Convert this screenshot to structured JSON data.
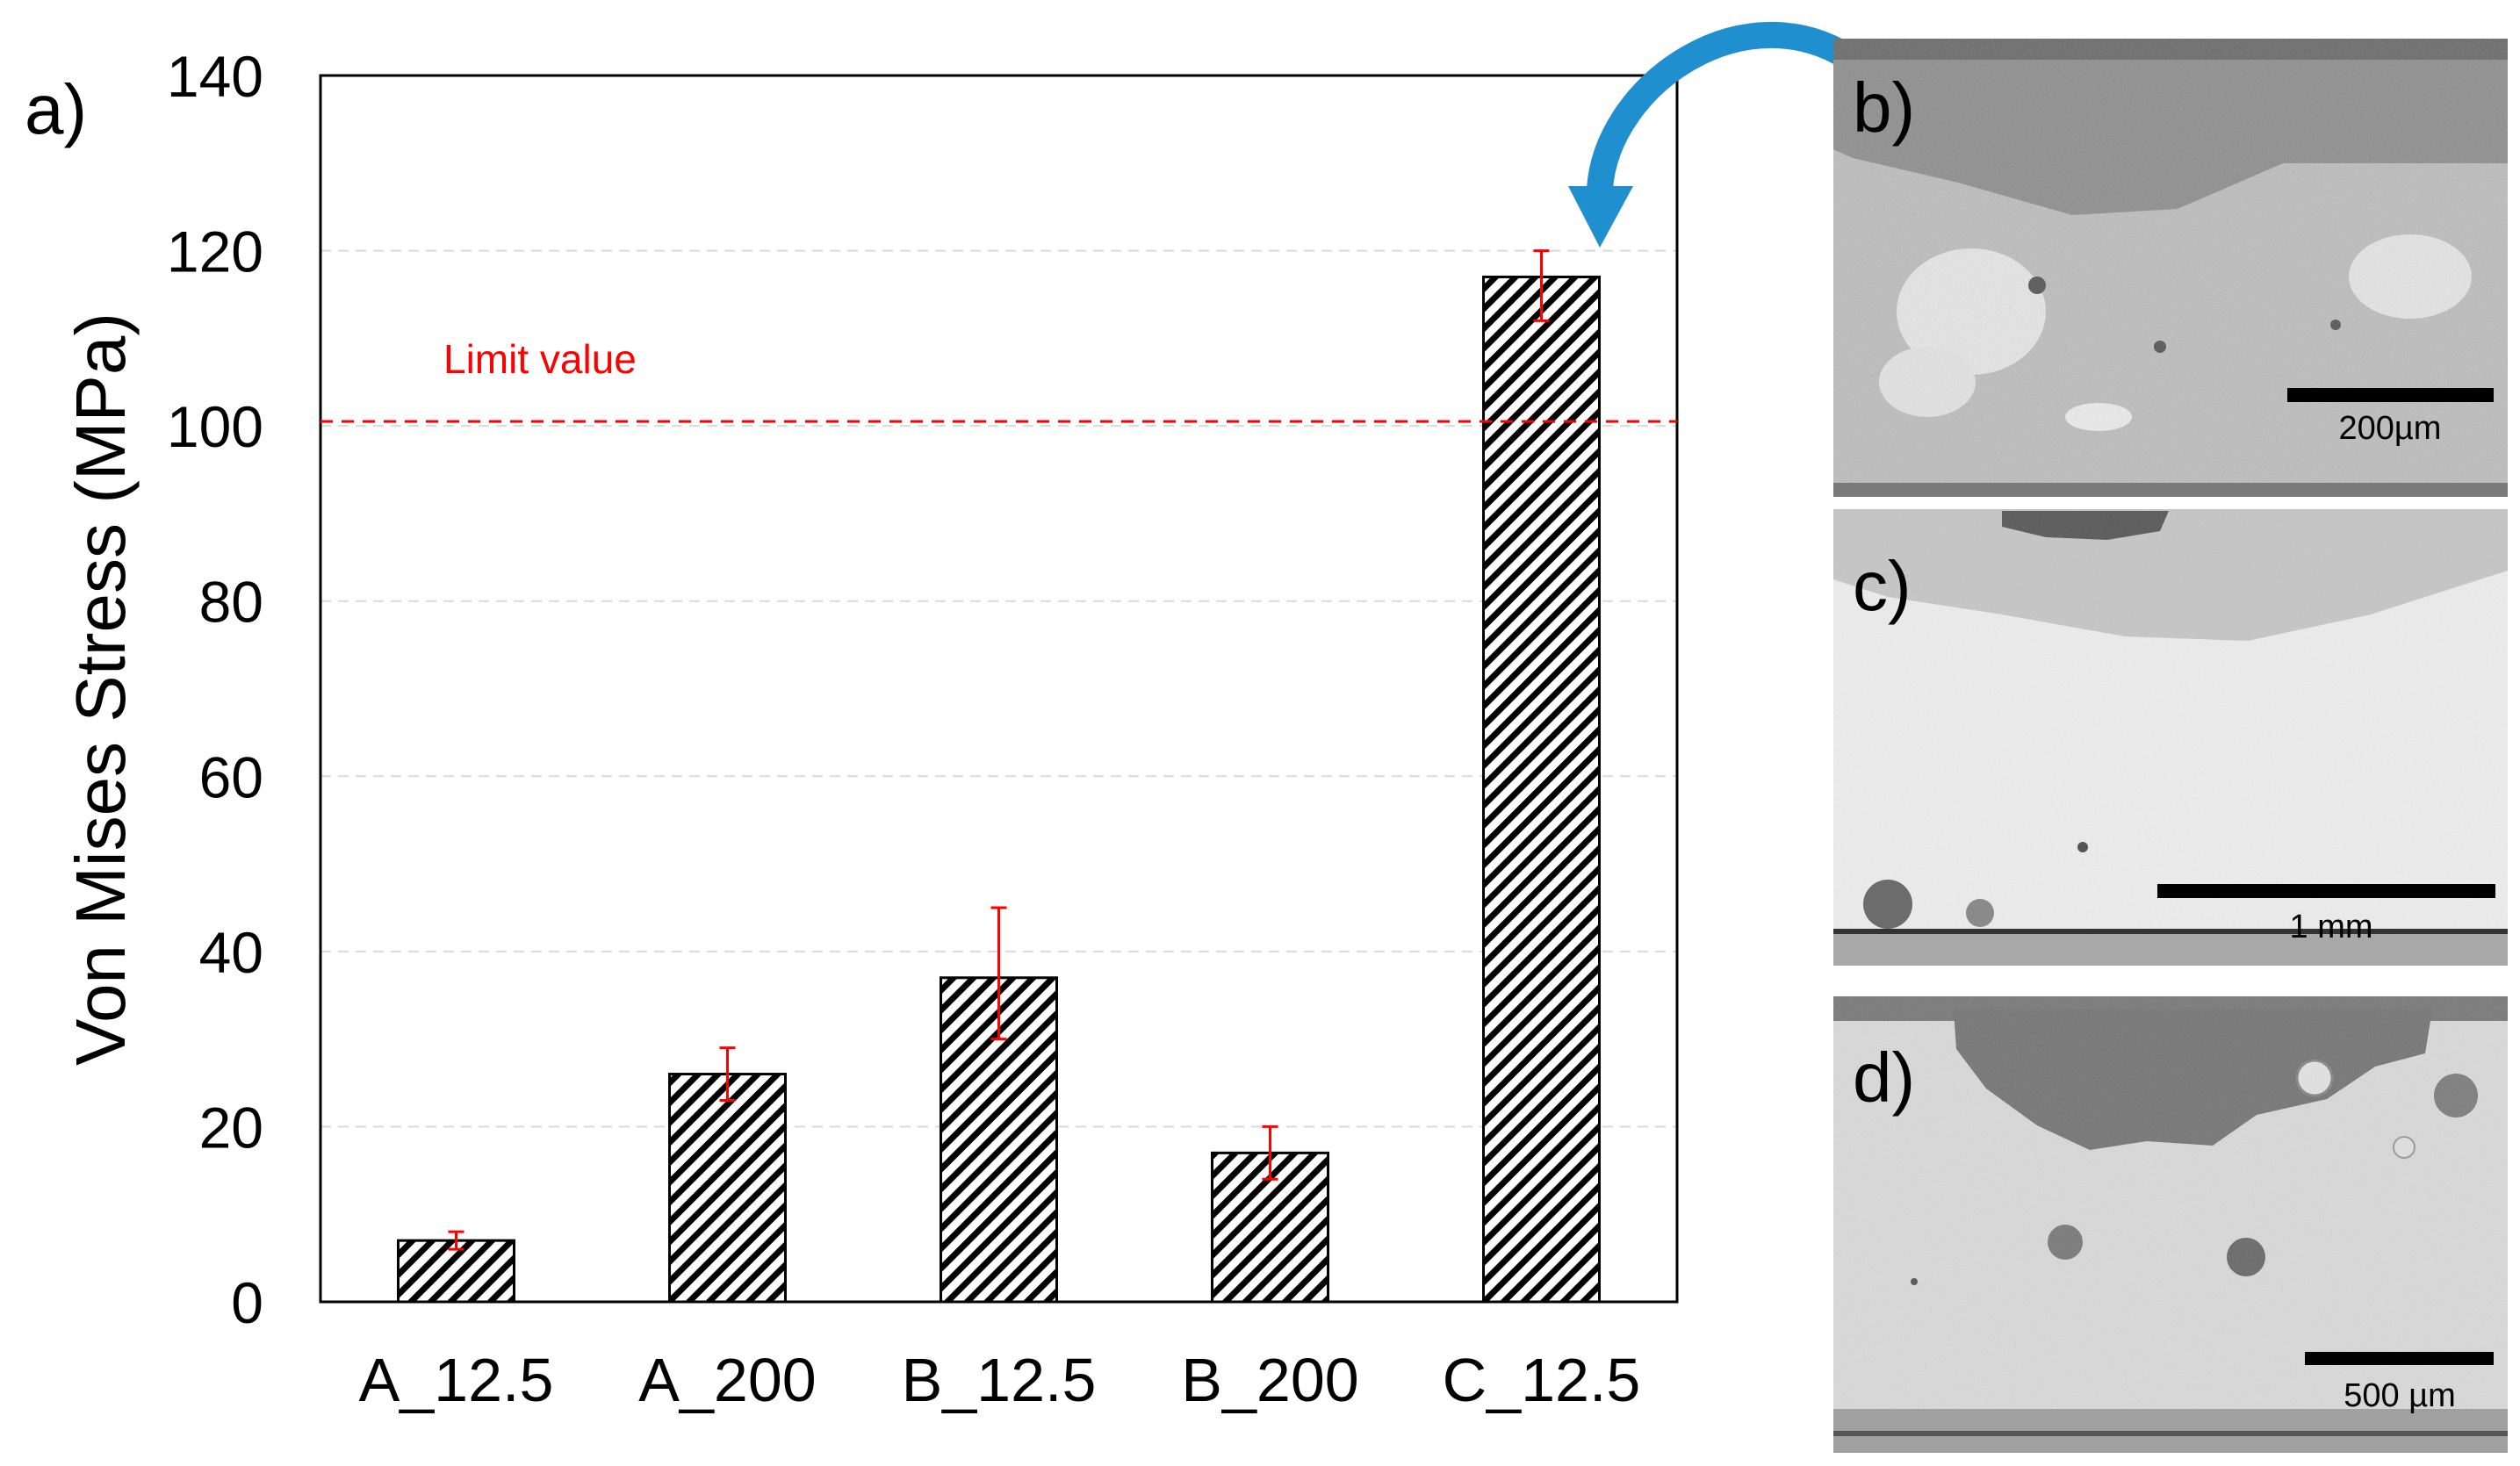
{
  "panel_labels": {
    "a": "a)",
    "b": "b)",
    "c": "c)",
    "d": "d)"
  },
  "chart_data": {
    "type": "bar",
    "title": "",
    "xlabel": "",
    "ylabel": "Von Mises Stress (MPa)",
    "ylim": [
      0,
      140
    ],
    "yticks": [
      0,
      20,
      40,
      60,
      80,
      100,
      120,
      140
    ],
    "grid": true,
    "categories": [
      "A_12.5",
      "A_200",
      "B_12.5",
      "B_200",
      "C_12.5"
    ],
    "values": [
      7,
      26,
      37,
      17,
      117
    ],
    "error_low": [
      1,
      3,
      7,
      3,
      5
    ],
    "error_high": [
      1,
      3,
      8,
      3,
      3
    ],
    "limit_line": {
      "value": 100.5,
      "label": "Limit value",
      "color": "#ff0000"
    },
    "bar_fill": "hatched",
    "error_color": "#ff0000"
  },
  "micrographs": [
    {
      "panel": "b)",
      "scale_label": "200µm"
    },
    {
      "panel": "c)",
      "scale_label": "1 mm"
    },
    {
      "panel": "d)",
      "scale_label": "500 µm"
    }
  ],
  "colors": {
    "arrow": "#1f8fd0",
    "grid": "#d9d9d9",
    "axis": "#000000"
  }
}
